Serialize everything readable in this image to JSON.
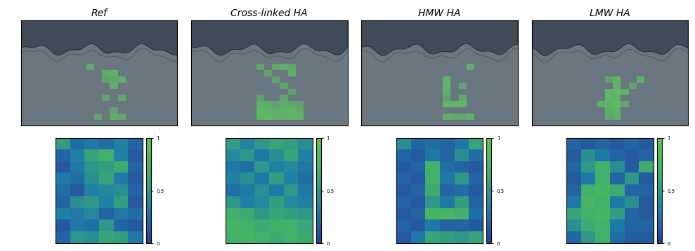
{
  "chart_data": [
    {
      "type": "heatmap",
      "title": "Ref",
      "tick_labels": false,
      "clim": [
        0,
        1
      ],
      "colorbar_ticks": [
        0,
        0.5,
        1
      ],
      "cells": [
        [
          0.55,
          0.25,
          0.3,
          0.25,
          0.35,
          0.2
        ],
        [
          0.2,
          0.35,
          0.6,
          0.7,
          0.35,
          0.15
        ],
        [
          0.15,
          0.3,
          0.5,
          0.55,
          0.65,
          0.2
        ],
        [
          0.3,
          0.25,
          0.45,
          0.6,
          0.3,
          0.15
        ],
        [
          0.25,
          0.15,
          0.35,
          0.4,
          0.45,
          0.2
        ],
        [
          0.2,
          0.45,
          0.5,
          0.35,
          0.55,
          0.15
        ],
        [
          0.35,
          0.3,
          0.4,
          0.2,
          0.3,
          0.25
        ],
        [
          0.15,
          0.3,
          0.25,
          0.5,
          0.2,
          0.15
        ],
        [
          0.2,
          0.5,
          0.45,
          0.6,
          0.55,
          0.3
        ]
      ]
    },
    {
      "type": "heatmap",
      "title": "Cross-linked HA",
      "tick_labels": false,
      "clim": [
        0,
        1
      ],
      "colorbar_ticks": [
        0,
        0.5,
        1
      ],
      "cells": [
        [
          0.55,
          0.35,
          0.5,
          0.6,
          0.55,
          0.45
        ],
        [
          0.4,
          0.5,
          0.3,
          0.45,
          0.6,
          0.35
        ],
        [
          0.3,
          0.25,
          0.5,
          0.35,
          0.4,
          0.3
        ],
        [
          0.35,
          0.45,
          0.3,
          0.55,
          0.35,
          0.25
        ],
        [
          0.25,
          0.3,
          0.45,
          0.3,
          0.5,
          0.3
        ],
        [
          0.5,
          0.35,
          0.4,
          0.55,
          0.4,
          0.35
        ],
        [
          0.7,
          0.65,
          0.5,
          0.6,
          0.55,
          0.5
        ],
        [
          0.75,
          0.7,
          0.65,
          0.7,
          0.7,
          0.6
        ],
        [
          0.7,
          0.75,
          0.7,
          0.65,
          0.7,
          0.65
        ]
      ]
    },
    {
      "type": "heatmap",
      "title": "HMW HA",
      "tick_labels": false,
      "clim": [
        0,
        1
      ],
      "colorbar_ticks": [
        0,
        0.5,
        1
      ],
      "cells": [
        [
          0.45,
          0.2,
          0.25,
          0.2,
          0.3,
          0.6
        ],
        [
          0.2,
          0.15,
          0.3,
          0.2,
          0.45,
          0.25
        ],
        [
          0.15,
          0.2,
          0.7,
          0.25,
          0.2,
          0.15
        ],
        [
          0.2,
          0.15,
          0.7,
          0.3,
          0.5,
          0.2
        ],
        [
          0.15,
          0.2,
          0.65,
          0.2,
          0.25,
          0.15
        ],
        [
          0.2,
          0.15,
          0.5,
          0.3,
          0.55,
          0.2
        ],
        [
          0.15,
          0.2,
          0.75,
          0.75,
          0.7,
          0.25
        ],
        [
          0.2,
          0.15,
          0.3,
          0.2,
          0.2,
          0.15
        ],
        [
          0.15,
          0.3,
          0.6,
          0.55,
          0.5,
          0.6
        ]
      ]
    },
    {
      "type": "heatmap",
      "title": "LMW HA",
      "tick_labels": false,
      "clim": [
        0,
        1
      ],
      "colorbar_ticks": [
        0,
        0.5,
        1
      ],
      "cells": [
        [
          0.2,
          0.15,
          0.2,
          0.15,
          0.2,
          0.15
        ],
        [
          0.15,
          0.45,
          0.3,
          0.2,
          0.15,
          0.2
        ],
        [
          0.2,
          0.5,
          0.7,
          0.45,
          0.15,
          0.65
        ],
        [
          0.15,
          0.3,
          0.7,
          0.2,
          0.5,
          0.15
        ],
        [
          0.2,
          0.7,
          0.75,
          0.65,
          0.2,
          0.2
        ],
        [
          0.3,
          0.75,
          0.7,
          0.3,
          0.45,
          0.15
        ],
        [
          0.6,
          0.7,
          0.75,
          0.55,
          0.2,
          0.15
        ],
        [
          0.45,
          0.65,
          0.7,
          0.3,
          0.2,
          0.2
        ],
        [
          0.2,
          0.5,
          0.7,
          0.25,
          0.15,
          0.15
        ]
      ]
    }
  ]
}
